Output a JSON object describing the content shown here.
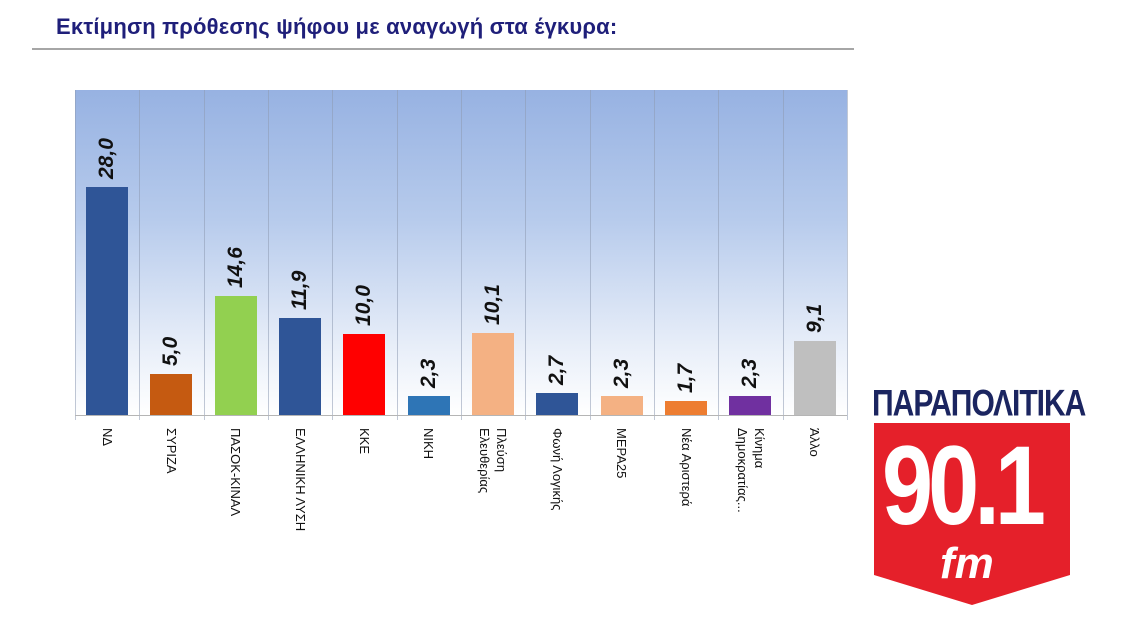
{
  "title": "Εκτίμηση πρόθεσης ψήφου με αναγωγή στα έγκυρα:",
  "logo": {
    "top_text": "ΠΑΡΑΠΟΛΙΤΙΚΑ",
    "frequency": "90.1",
    "band": "fm",
    "colors": {
      "red": "#e5202a",
      "navy": "#1b2560"
    }
  },
  "chart_data": {
    "type": "bar",
    "title": "Εκτίμηση πρόθεσης ψήφου με αναγωγή στα έγκυρα:",
    "xlabel": "",
    "ylabel": "",
    "ylim": [
      0,
      40
    ],
    "grid": "vertical separators",
    "legend": "none",
    "categories": [
      "ΝΔ",
      "ΣΥΡΙΖΑ",
      "ΠΑΣΟΚ-ΚΙΝΑΛ",
      "ΕΛΛΗΝΙΚΗ ΛΥΣΗ",
      "ΚΚΕ",
      "ΝΙΚΗ",
      "Πλεύση Ελευθερίας",
      "Φωνή Λογικής",
      "ΜΕΡΑ25",
      "Νέα Αριστερά",
      "Κίνημα Δημοκρατίας...",
      "Άλλο"
    ],
    "values": [
      28.0,
      5.0,
      14.6,
      11.9,
      10.0,
      2.3,
      10.1,
      2.7,
      2.3,
      1.7,
      2.3,
      9.1
    ],
    "value_labels": [
      "28,0",
      "5,0",
      "14,6",
      "11,9",
      "10,0",
      "2,3",
      "10,1",
      "2,7",
      "2,3",
      "1,7",
      "2,3",
      "9,1"
    ],
    "category_display": [
      "ΝΔ",
      "ΣΥΡΙΖΑ",
      "ΠΑΣΟΚ-ΚΙΝΑΛ",
      "ΕΛΛΗΝΙΚΗ ΛΥΣΗ",
      "ΚΚΕ",
      "ΝΙΚΗ",
      "Πλεύση\nΕλευθερίας",
      "Φωνή Λογικής",
      "ΜΕΡΑ25",
      "Νέα Αριστερά",
      "Κίνημα\nΔημοκρατίας...",
      "Άλλο"
    ],
    "colors": [
      "#2f5597",
      "#c55a11",
      "#92d050",
      "#2f5597",
      "#ff0000",
      "#2e75b6",
      "#f4b183",
      "#2f5597",
      "#f4b183",
      "#ed7d31",
      "#7030a0",
      "#bfbfbf"
    ]
  }
}
